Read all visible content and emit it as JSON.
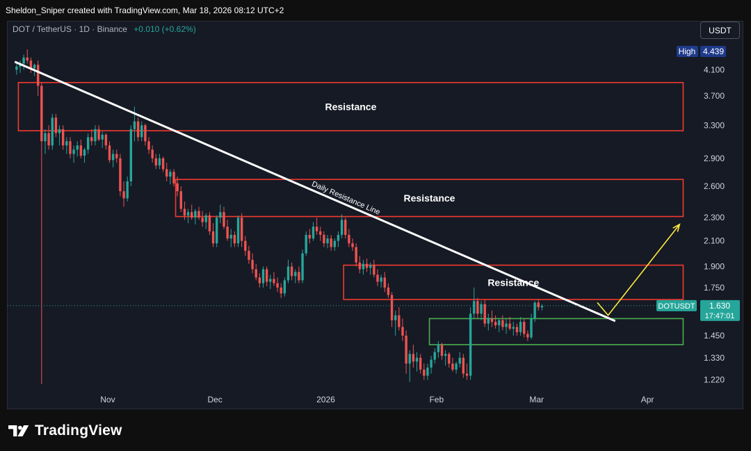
{
  "header": {
    "credit": "Sheldon_Sniper created with TradingView.com, Mar 18, 2026 08:12 UTC+2"
  },
  "symbol": {
    "name": "DOT / TetherUS · 1D · Binance",
    "change": "+0.010 (+0.62%)"
  },
  "currency": "USDT",
  "footer": {
    "brand": "TradingView"
  },
  "colors": {
    "background": "#161a25",
    "up": "#26a69a",
    "down": "#ef5350",
    "resistance_box": "#f23a2f",
    "support_box": "#4caf50",
    "trendline": "#ffffff",
    "projection_arrow": "#ffeb3b"
  },
  "chart_data": {
    "type": "candlestick",
    "price_axis": {
      "scale": "log",
      "ticks": [
        "4.100",
        "3.700",
        "3.300",
        "2.900",
        "2.600",
        "2.300",
        "2.100",
        "1.900",
        "1.750",
        "1.450",
        "1.330",
        "1.220"
      ],
      "ylim": [
        1.17,
        4.55
      ]
    },
    "time_axis": {
      "labels": [
        "Nov",
        "Dec",
        "2026",
        "Feb",
        "Mar",
        "Apr"
      ],
      "xlim": [
        "2025-10-04",
        "2026-04-15"
      ]
    },
    "price_labels": {
      "high_label": "High",
      "high_value": "4.439",
      "last_symbol": "DOTUSDT",
      "last_price": "1.630",
      "countdown": "17:47:01"
    },
    "annotations": {
      "resistance_1": "Resistance",
      "resistance_2": "Resistance",
      "resistance_3": "Resistance",
      "trendline_label": "Daily Resistance Line"
    },
    "zones": [
      {
        "kind": "resistance",
        "from": "2025-10-07",
        "to": "2026-04-11",
        "low": 3.23,
        "high": 3.9
      },
      {
        "kind": "resistance",
        "from": "2025-11-20",
        "to": "2026-04-11",
        "low": 2.31,
        "high": 2.67
      },
      {
        "kind": "resistance",
        "from": "2026-01-06",
        "to": "2026-04-11",
        "low": 1.67,
        "high": 1.91
      },
      {
        "kind": "support",
        "from": "2026-01-30",
        "to": "2026-04-11",
        "low": 1.4,
        "high": 1.55
      }
    ],
    "trendline": {
      "from": [
        "2025-10-06",
        4.23
      ],
      "to": [
        "2026-03-23",
        1.535
      ]
    },
    "projection": [
      [
        "2026-03-18",
        1.65
      ],
      [
        "2026-03-21",
        1.57
      ],
      [
        "2026-04-10",
        2.24
      ]
    ],
    "candles": [
      [
        4.1,
        4.2,
        4.02,
        4.15
      ],
      [
        4.15,
        4.25,
        4.05,
        4.2
      ],
      [
        4.2,
        4.35,
        4.1,
        4.3
      ],
      [
        4.3,
        4.44,
        4.2,
        4.25
      ],
      [
        4.25,
        4.3,
        4.05,
        4.12
      ],
      [
        4.12,
        4.2,
        4.0,
        4.18
      ],
      [
        4.18,
        4.25,
        3.7,
        3.85
      ],
      [
        3.85,
        3.9,
        1.2,
        3.1
      ],
      [
        3.1,
        3.25,
        2.95,
        3.2
      ],
      [
        3.2,
        3.3,
        3.0,
        3.05
      ],
      [
        3.05,
        3.45,
        3.0,
        3.4
      ],
      [
        3.4,
        3.45,
        3.15,
        3.2
      ],
      [
        3.2,
        3.3,
        3.05,
        3.25
      ],
      [
        3.25,
        3.3,
        3.0,
        3.05
      ],
      [
        3.05,
        3.15,
        2.95,
        3.1
      ],
      [
        3.1,
        3.15,
        2.9,
        2.95
      ],
      [
        2.95,
        3.05,
        2.85,
        3.0
      ],
      [
        3.0,
        3.1,
        2.92,
        3.05
      ],
      [
        3.05,
        3.12,
        2.9,
        2.93
      ],
      [
        2.93,
        3.02,
        2.85,
        3.0
      ],
      [
        3.0,
        3.2,
        2.95,
        3.15
      ],
      [
        3.15,
        3.25,
        3.05,
        3.1
      ],
      [
        3.1,
        3.3,
        3.05,
        3.25
      ],
      [
        3.25,
        3.3,
        3.1,
        3.12
      ],
      [
        3.12,
        3.22,
        3.02,
        3.18
      ],
      [
        3.18,
        3.2,
        3.0,
        3.05
      ],
      [
        3.05,
        3.1,
        2.85,
        2.88
      ],
      [
        2.88,
        3.0,
        2.8,
        2.95
      ],
      [
        2.95,
        3.0,
        2.85,
        2.9
      ],
      [
        2.9,
        2.95,
        2.5,
        2.55
      ],
      [
        2.55,
        2.65,
        2.4,
        2.48
      ],
      [
        2.48,
        2.7,
        2.45,
        2.65
      ],
      [
        2.65,
        3.3,
        2.6,
        3.25
      ],
      [
        3.25,
        3.55,
        3.1,
        3.35
      ],
      [
        3.35,
        3.4,
        3.1,
        3.15
      ],
      [
        3.15,
        3.35,
        3.1,
        3.3
      ],
      [
        3.3,
        3.32,
        3.05,
        3.1
      ],
      [
        3.1,
        3.15,
        2.95,
        3.0
      ],
      [
        3.0,
        3.05,
        2.85,
        2.9
      ],
      [
        2.9,
        2.95,
        2.78,
        2.82
      ],
      [
        2.82,
        2.95,
        2.78,
        2.9
      ],
      [
        2.9,
        2.92,
        2.75,
        2.78
      ],
      [
        2.78,
        2.85,
        2.65,
        2.7
      ],
      [
        2.7,
        2.78,
        2.62,
        2.75
      ],
      [
        2.75,
        2.78,
        2.6,
        2.63
      ],
      [
        2.63,
        2.7,
        2.5,
        2.55
      ],
      [
        2.55,
        2.6,
        2.35,
        2.38
      ],
      [
        2.38,
        2.45,
        2.28,
        2.32
      ],
      [
        2.32,
        2.38,
        2.25,
        2.35
      ],
      [
        2.35,
        2.42,
        2.28,
        2.3
      ],
      [
        2.3,
        2.38,
        2.24,
        2.36
      ],
      [
        2.36,
        2.4,
        2.28,
        2.3
      ],
      [
        2.3,
        2.36,
        2.22,
        2.26
      ],
      [
        2.26,
        2.34,
        2.2,
        2.32
      ],
      [
        2.32,
        2.35,
        2.15,
        2.18
      ],
      [
        2.18,
        2.25,
        2.05,
        2.08
      ],
      [
        2.08,
        2.32,
        2.05,
        2.3
      ],
      [
        2.3,
        2.42,
        2.25,
        2.35
      ],
      [
        2.35,
        2.4,
        2.2,
        2.22
      ],
      [
        2.22,
        2.28,
        2.1,
        2.12
      ],
      [
        2.12,
        2.2,
        2.05,
        2.15
      ],
      [
        2.15,
        2.18,
        2.05,
        2.08
      ],
      [
        2.08,
        2.32,
        2.05,
        2.3
      ],
      [
        2.3,
        2.34,
        2.05,
        2.1
      ],
      [
        2.1,
        2.14,
        1.98,
        2.02
      ],
      [
        2.02,
        2.06,
        1.92,
        1.95
      ],
      [
        1.95,
        2.0,
        1.85,
        1.88
      ],
      [
        1.88,
        1.92,
        1.8,
        1.82
      ],
      [
        1.82,
        1.85,
        1.75,
        1.78
      ],
      [
        1.78,
        1.9,
        1.75,
        1.88
      ],
      [
        1.88,
        1.9,
        1.76,
        1.79
      ],
      [
        1.79,
        1.84,
        1.74,
        1.81
      ],
      [
        1.81,
        1.86,
        1.76,
        1.78
      ],
      [
        1.78,
        1.82,
        1.72,
        1.75
      ],
      [
        1.75,
        1.78,
        1.68,
        1.71
      ],
      [
        1.71,
        1.82,
        1.69,
        1.8
      ],
      [
        1.8,
        1.95,
        1.78,
        1.9
      ],
      [
        1.9,
        1.93,
        1.8,
        1.83
      ],
      [
        1.83,
        1.88,
        1.78,
        1.86
      ],
      [
        1.86,
        1.9,
        1.78,
        1.8
      ],
      [
        1.8,
        2.03,
        1.78,
        2.0
      ],
      [
        2.0,
        2.18,
        1.98,
        2.15
      ],
      [
        2.15,
        2.2,
        2.08,
        2.12
      ],
      [
        2.12,
        2.26,
        2.1,
        2.22
      ],
      [
        2.22,
        2.3,
        2.15,
        2.18
      ],
      [
        2.18,
        2.22,
        2.1,
        2.15
      ],
      [
        2.15,
        2.18,
        2.05,
        2.08
      ],
      [
        2.08,
        2.15,
        2.04,
        2.12
      ],
      [
        2.12,
        2.15,
        2.02,
        2.05
      ],
      [
        2.05,
        2.12,
        2.02,
        2.1
      ],
      [
        2.1,
        2.18,
        2.05,
        2.15
      ],
      [
        2.15,
        2.33,
        2.12,
        2.28
      ],
      [
        2.28,
        2.3,
        2.12,
        2.15
      ],
      [
        2.15,
        2.2,
        2.05,
        2.08
      ],
      [
        2.08,
        2.12,
        2.02,
        2.05
      ],
      [
        2.05,
        2.08,
        1.9,
        1.93
      ],
      [
        1.93,
        1.98,
        1.85,
        1.88
      ],
      [
        1.88,
        1.95,
        1.84,
        1.92
      ],
      [
        1.92,
        1.96,
        1.86,
        1.89
      ],
      [
        1.89,
        1.93,
        1.84,
        1.91
      ],
      [
        1.91,
        1.95,
        1.82,
        1.84
      ],
      [
        1.84,
        1.88,
        1.76,
        1.79
      ],
      [
        1.79,
        1.84,
        1.75,
        1.82
      ],
      [
        1.82,
        1.86,
        1.72,
        1.75
      ],
      [
        1.75,
        1.78,
        1.68,
        1.7
      ],
      [
        1.7,
        1.72,
        1.5,
        1.54
      ],
      [
        1.54,
        1.6,
        1.45,
        1.57
      ],
      [
        1.57,
        1.62,
        1.48,
        1.5
      ],
      [
        1.5,
        1.55,
        1.42,
        1.45
      ],
      [
        1.45,
        1.48,
        1.25,
        1.3
      ],
      [
        1.3,
        1.37,
        1.21,
        1.35
      ],
      [
        1.35,
        1.4,
        1.28,
        1.31
      ],
      [
        1.31,
        1.36,
        1.26,
        1.33
      ],
      [
        1.33,
        1.35,
        1.25,
        1.27
      ],
      [
        1.27,
        1.3,
        1.22,
        1.24
      ],
      [
        1.24,
        1.3,
        1.22,
        1.28
      ],
      [
        1.28,
        1.34,
        1.25,
        1.32
      ],
      [
        1.32,
        1.38,
        1.3,
        1.36
      ],
      [
        1.36,
        1.42,
        1.33,
        1.4
      ],
      [
        1.4,
        1.41,
        1.32,
        1.34
      ],
      [
        1.34,
        1.37,
        1.29,
        1.35
      ],
      [
        1.35,
        1.36,
        1.28,
        1.3
      ],
      [
        1.3,
        1.33,
        1.26,
        1.27
      ],
      [
        1.27,
        1.31,
        1.25,
        1.3
      ],
      [
        1.3,
        1.36,
        1.28,
        1.33
      ],
      [
        1.33,
        1.35,
        1.23,
        1.25
      ],
      [
        1.25,
        1.3,
        1.22,
        1.24
      ],
      [
        1.24,
        1.62,
        1.22,
        1.58
      ],
      [
        1.58,
        1.75,
        1.55,
        1.66
      ],
      [
        1.66,
        1.68,
        1.55,
        1.58
      ],
      [
        1.58,
        1.66,
        1.54,
        1.64
      ],
      [
        1.64,
        1.67,
        1.5,
        1.52
      ],
      [
        1.52,
        1.58,
        1.48,
        1.55
      ],
      [
        1.55,
        1.6,
        1.5,
        1.53
      ],
      [
        1.53,
        1.57,
        1.49,
        1.51
      ],
      [
        1.51,
        1.55,
        1.47,
        1.54
      ],
      [
        1.54,
        1.57,
        1.48,
        1.5
      ],
      [
        1.5,
        1.55,
        1.46,
        1.52
      ],
      [
        1.52,
        1.56,
        1.48,
        1.49
      ],
      [
        1.49,
        1.53,
        1.45,
        1.5
      ],
      [
        1.5,
        1.52,
        1.45,
        1.47
      ],
      [
        1.47,
        1.56,
        1.45,
        1.53
      ],
      [
        1.53,
        1.55,
        1.44,
        1.46
      ],
      [
        1.46,
        1.48,
        1.42,
        1.44
      ],
      [
        1.44,
        1.58,
        1.43,
        1.55
      ],
      [
        1.55,
        1.66,
        1.53,
        1.65
      ],
      [
        1.65,
        1.67,
        1.6,
        1.62
      ],
      [
        1.62,
        1.64,
        1.6,
        1.63
      ]
    ]
  }
}
